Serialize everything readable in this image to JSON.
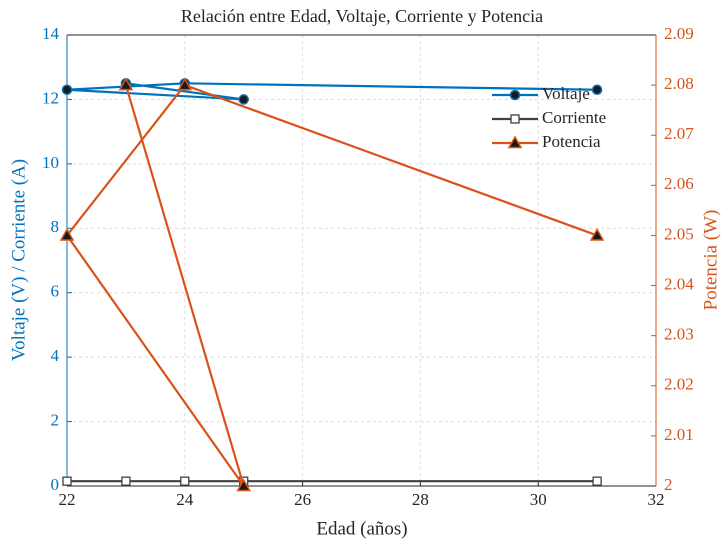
{
  "chart_data": {
    "type": "line",
    "title": "Relación entre Edad, Voltaje, Corriente y Potencia",
    "xlabel": "Edad (años)",
    "ylabel": "Voltaje (V) / Corriente (A)",
    "y2label": "Potencia (W)",
    "x": [
      23,
      25,
      22,
      24,
      31
    ],
    "series": [
      {
        "name": "Voltaje",
        "color": "#0072BD",
        "marker": "circle",
        "values": [
          12.5,
          12.0,
          12.3,
          12.5,
          12.3
        ]
      },
      {
        "name": "Corriente",
        "color": "#404040",
        "marker": "square",
        "values": [
          0.15,
          0.15,
          0.15,
          0.15,
          0.15
        ]
      },
      {
        "name": "Potencia",
        "color": "#D95319",
        "marker": "triangle",
        "axis": "y2",
        "values": [
          2.08,
          2.0,
          2.05,
          2.08,
          2.05
        ]
      }
    ],
    "xlim": [
      22,
      32
    ],
    "xticks": [
      22,
      24,
      26,
      28,
      30,
      32
    ],
    "ylim": [
      0,
      14
    ],
    "yticks": [
      0,
      2,
      4,
      6,
      8,
      10,
      12,
      14
    ],
    "y2lim": [
      2,
      2.09
    ],
    "y2ticks": [
      2,
      2.01,
      2.02,
      2.03,
      2.04,
      2.05,
      2.06,
      2.07,
      2.08,
      2.09
    ],
    "grid": true,
    "legend": "northeast"
  }
}
